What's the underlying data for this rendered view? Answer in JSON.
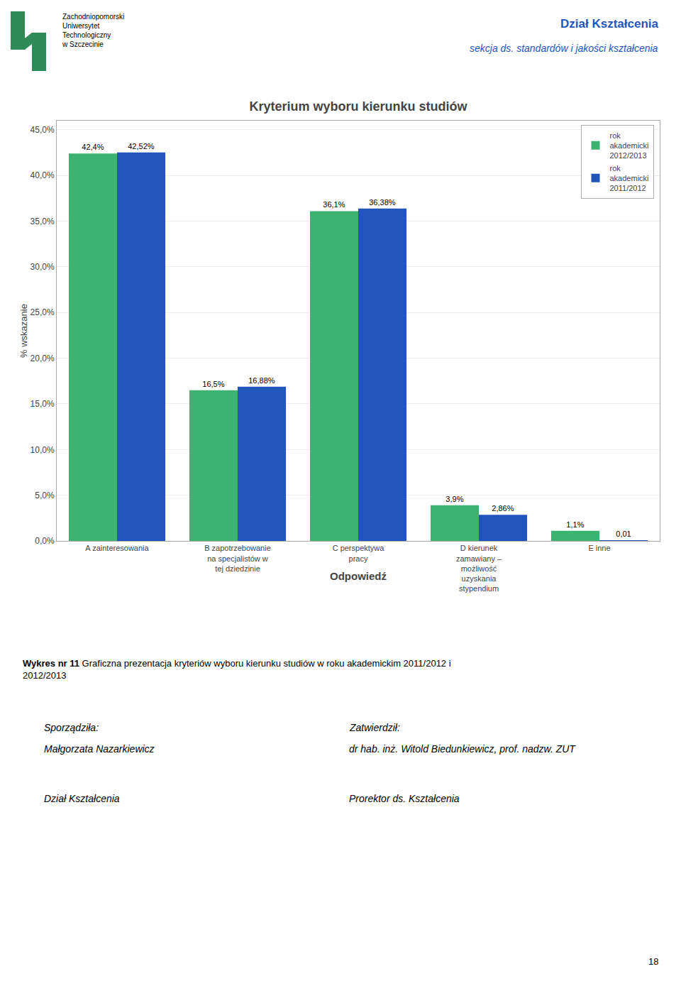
{
  "chart_data": {
    "type": "bar",
    "title": "Kryterium wyboru kierunku studiów",
    "xlabel": "Odpowiedź",
    "ylabel": "% wskazanie",
    "categories": [
      "A zainteresowania",
      "B zapotrzebowanie\nna specjalistów w\ntej dziedzinie",
      "C perspektywa\npracy",
      "D kierunek\nzamawiany –\nmożliwość\nuzyskania\nstypendium",
      "E inne"
    ],
    "series": [
      {
        "name": "rok\nakademicki\n2012/2013",
        "color": "#3CB371",
        "values": [
          42.4,
          16.5,
          36.1,
          3.9,
          1.1
        ],
        "value_labels": [
          "42,4%",
          "16,5%",
          "36,1%",
          "3,9%",
          "1,1%"
        ]
      },
      {
        "name": "rok\nakademicki\n2011/2012",
        "color": "#2255BB",
        "values": [
          42.52,
          16.88,
          36.38,
          2.86,
          0.01
        ],
        "value_labels": [
          "42,52%",
          "16,88%",
          "36,38%",
          "2,86%",
          "0,01"
        ]
      }
    ],
    "ylim": [
      0,
      46
    ],
    "yticks": [
      {
        "value": 0,
        "label": "0,0%"
      },
      {
        "value": 5,
        "label": "5,0%"
      },
      {
        "value": 10,
        "label": "10,0%"
      },
      {
        "value": 15,
        "label": "15,0%"
      },
      {
        "value": 20,
        "label": "20,0%"
      },
      {
        "value": 25,
        "label": "25,0%"
      },
      {
        "value": 30,
        "label": "30,0%"
      },
      {
        "value": 35,
        "label": "35,0%"
      },
      {
        "value": 40,
        "label": "40,0%"
      },
      {
        "value": 45,
        "label": "45,0%"
      }
    ],
    "grid": true,
    "legend": "upper right",
    "data_labels": true,
    "annotations": [
      "Dział Kształcenia",
      "sekcja ds. standardów i jakości kształcenia",
      "Zachodniopomorski\nUniwersytet\nTechnologiczny\nw Szczecinie",
      "Wykres nr 11",
      " Graficzna prezentacja kryteriów wyboru kierunku studiów w roku akademickim 2011/2012 i\n2012/2013",
      "Sporządziła:",
      "Małgorzata Nazarkiewicz",
      "Dział Kształcenia",
      "Zatwierdził:",
      "dr hab. inż. Witold Biedunkiewicz, prof. nadzw. ZUT",
      "Prorektor ds. Kształcenia",
      "18"
    ]
  }
}
